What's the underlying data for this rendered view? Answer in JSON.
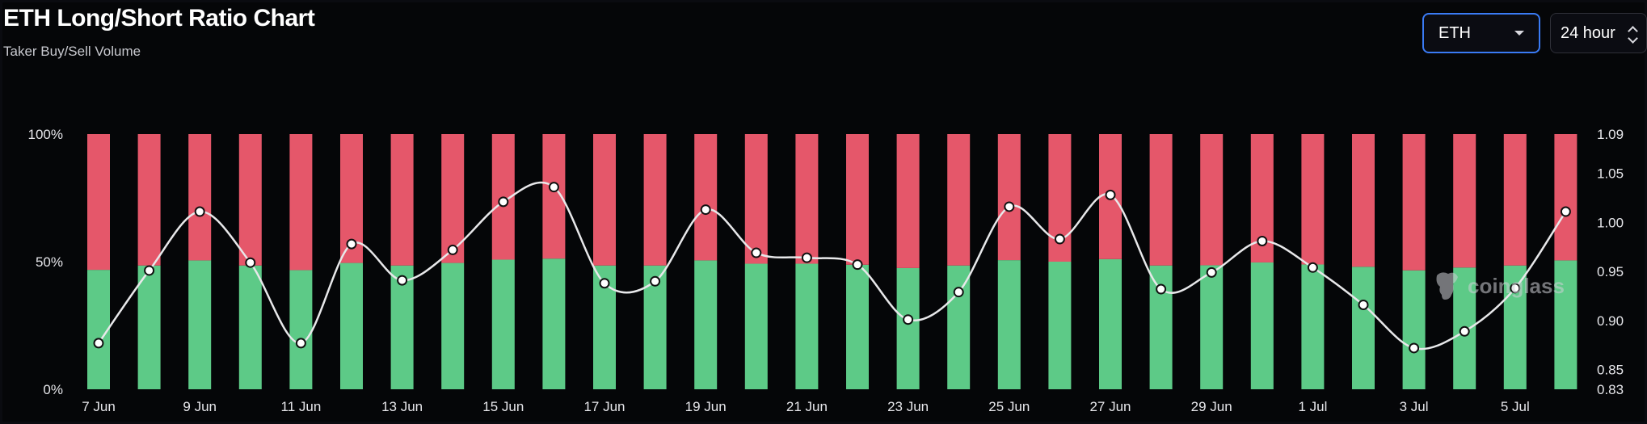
{
  "header": {
    "title": "ETH Long/Short Ratio Chart",
    "subtitle": "Taker Buy/Sell Volume"
  },
  "controls": {
    "coin": "ETH",
    "period": "24 hour"
  },
  "watermark": "coinglass",
  "colors": {
    "long": "#5dca87",
    "short": "#e5576a",
    "line": "#e8e8ea",
    "background": "#050608"
  },
  "chart_data": {
    "type": "bar",
    "stacked": true,
    "categories": [
      "7 Jun",
      "8 Jun",
      "9 Jun",
      "10 Jun",
      "11 Jun",
      "12 Jun",
      "13 Jun",
      "14 Jun",
      "15 Jun",
      "16 Jun",
      "17 Jun",
      "18 Jun",
      "19 Jun",
      "20 Jun",
      "21 Jun",
      "22 Jun",
      "23 Jun",
      "24 Jun",
      "25 Jun",
      "26 Jun",
      "27 Jun",
      "28 Jun",
      "29 Jun",
      "30 Jun",
      "1 Jul",
      "2 Jul",
      "3 Jul",
      "4 Jul",
      "5 Jul",
      "6 Jul"
    ],
    "x_tick_labels": [
      "7 Jun",
      "9 Jun",
      "11 Jun",
      "13 Jun",
      "15 Jun",
      "17 Jun",
      "19 Jun",
      "21 Jun",
      "23 Jun",
      "25 Jun",
      "27 Jun",
      "29 Jun",
      "1 Jul",
      "3 Jul",
      "5 Jul"
    ],
    "series": [
      {
        "values": [
          46.8,
          48.5,
          50.5,
          48.5,
          46.7,
          49.5,
          48.5,
          49.5,
          50.8,
          51.2,
          48.5,
          48.5,
          50.5,
          49.2,
          49.2,
          48.8,
          47.5,
          48.5,
          50.6,
          50.0,
          51.0,
          48.5,
          48.6,
          49.7,
          48.9,
          48.0,
          46.6,
          47.7,
          48.5,
          50.5
        ]
      },
      {
        "values": [
          53.2,
          51.5,
          49.5,
          51.5,
          53.3,
          50.5,
          51.5,
          50.5,
          49.2,
          48.8,
          51.5,
          51.5,
          49.5,
          50.8,
          50.8,
          51.2,
          52.5,
          51.5,
          49.4,
          50.0,
          49.0,
          51.5,
          51.4,
          50.3,
          51.1,
          52.0,
          53.4,
          52.3,
          51.5,
          49.5
        ]
      },
      {
        "axis": "right",
        "values": [
          0.877,
          0.951,
          1.011,
          0.959,
          0.877,
          0.978,
          0.941,
          0.972,
          1.021,
          1.036,
          0.938,
          0.94,
          1.013,
          0.969,
          0.964,
          0.957,
          0.901,
          0.929,
          1.016,
          0.983,
          1.028,
          0.932,
          0.949,
          0.981,
          0.954,
          0.916,
          0.872,
          0.889,
          0.933,
          1.011
        ]
      }
    ],
    "y_left": {
      "ticks": [
        "0%",
        "50%",
        "100%"
      ],
      "range": [
        0,
        100
      ]
    },
    "y_right": {
      "ticks": [
        "0.83",
        "0.85",
        "0.90",
        "0.95",
        "1.00",
        "1.05",
        "1.09"
      ],
      "range": [
        0.83,
        1.09
      ]
    },
    "grid": false,
    "legend": "none"
  }
}
